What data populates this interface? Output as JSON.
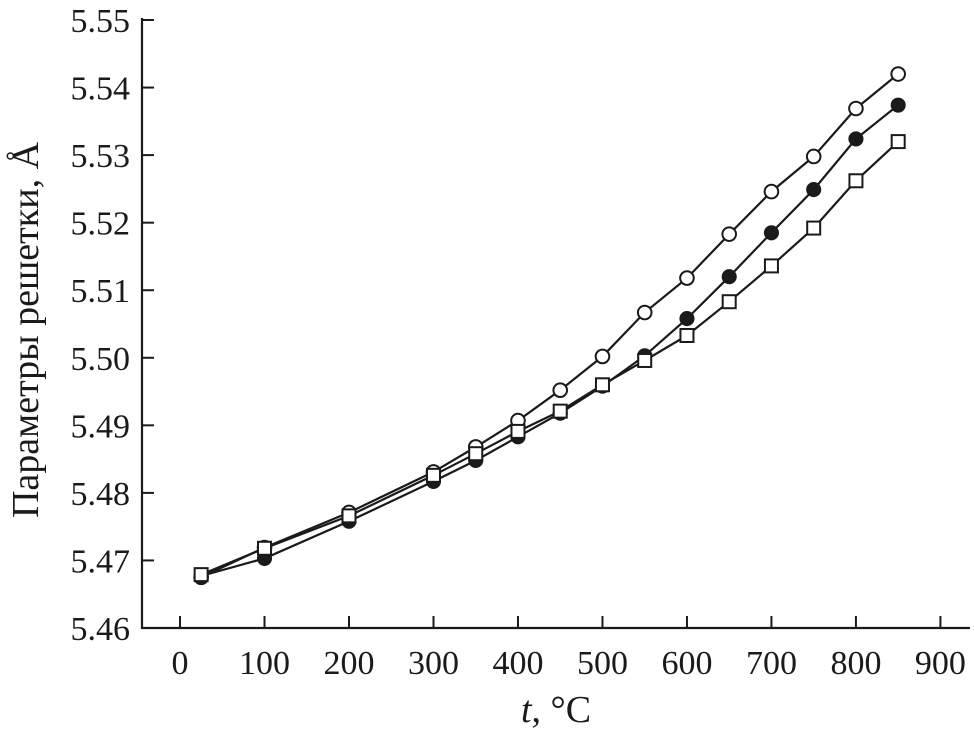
{
  "chart_data": {
    "type": "line",
    "xlabel_var": "t",
    "xlabel_unit": ", °C",
    "ylabel": "Параметры решетки, Å",
    "xlim": [
      -45,
      935
    ],
    "ylim": [
      5.46,
      5.55
    ],
    "xticks": [
      0,
      100,
      200,
      300,
      400,
      500,
      600,
      700,
      800,
      900
    ],
    "yticks": [
      5.46,
      5.47,
      5.48,
      5.49,
      5.5,
      5.51,
      5.52,
      5.53,
      5.54,
      5.55
    ],
    "xtick_labels": [
      "0",
      "100",
      "200",
      "300",
      "400",
      "500",
      "600",
      "700",
      "800",
      "900"
    ],
    "ytick_labels": [
      "5.46",
      "5.47",
      "5.48",
      "5.49",
      "5.50",
      "5.51",
      "5.52",
      "5.53",
      "5.54",
      "5.55"
    ],
    "grid": false,
    "colors": {
      "line": "#1a1a1a",
      "filled_marker": "#1a1a1a",
      "open_marker": "#ffffff"
    },
    "series": [
      {
        "marker": "open-circle",
        "x": [
          25,
          100,
          200,
          300,
          350,
          400,
          450,
          500,
          550,
          600,
          650,
          700,
          750,
          800,
          850
        ],
        "y": [
          5.4675,
          5.4719,
          5.4771,
          5.4831,
          5.4868,
          5.4907,
          5.4952,
          5.5002,
          5.5067,
          5.5118,
          5.5183,
          5.5246,
          5.5298,
          5.5369,
          5.542
        ]
      },
      {
        "marker": "filled-circle",
        "x": [
          25,
          100,
          200,
          300,
          350,
          400,
          450,
          500,
          550,
          600,
          650,
          700,
          750,
          800,
          850
        ],
        "y": [
          5.4677,
          5.4703,
          5.4758,
          5.4817,
          5.4848,
          5.4883,
          5.4918,
          5.4958,
          5.5003,
          5.5058,
          5.512,
          5.5185,
          5.5249,
          5.5324,
          5.5374
        ]
      },
      {
        "marker": "open-square",
        "x": [
          25,
          100,
          200,
          300,
          350,
          400,
          450,
          500,
          550,
          600,
          650,
          700,
          750,
          800,
          850
        ],
        "y": [
          5.4679,
          5.4718,
          5.4766,
          5.4826,
          5.4858,
          5.4891,
          5.4921,
          5.496,
          5.4996,
          5.5033,
          5.5083,
          5.5136,
          5.5192,
          5.5262,
          5.532
        ]
      }
    ]
  }
}
